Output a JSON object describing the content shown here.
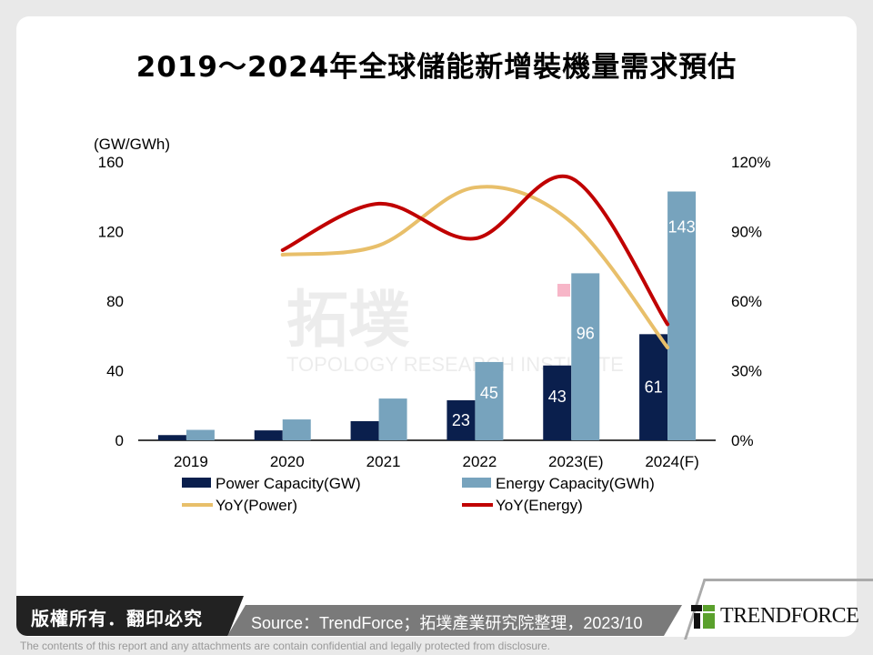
{
  "title": "2019～2024年全球儲能新增裝機量需求預估",
  "chart_data": {
    "type": "bar+line",
    "title": "2019～2024年全球儲能新增裝機量需求預估",
    "ylabel": "(GW/GWh)",
    "categories": [
      "2019",
      "2020",
      "2021",
      "2022",
      "2023(E)",
      "2024(F)"
    ],
    "ylim": [
      0,
      160
    ],
    "yticks": [
      "0",
      "40",
      "80",
      "120",
      "160"
    ],
    "y2lim": [
      0,
      120
    ],
    "y2ticks": [
      "0%",
      "30%",
      "60%",
      "90%",
      "120%"
    ],
    "series": [
      {
        "name": "Power Capacity(GW)",
        "type": "bar",
        "axis": "left",
        "color": "#0a1f4d",
        "values": [
          3,
          5.7,
          11,
          23,
          43,
          61
        ],
        "labels": [
          null,
          null,
          null,
          "23",
          "43",
          "61"
        ]
      },
      {
        "name": "Energy Capacity(GWh)",
        "type": "bar",
        "axis": "left",
        "color": "#77a3bd",
        "values": [
          6,
          12,
          24,
          45,
          96,
          143
        ],
        "labels": [
          null,
          null,
          null,
          "45",
          "96",
          "143"
        ]
      },
      {
        "name": "YoY(Power)",
        "type": "line",
        "axis": "right",
        "color": "#e8bf6a",
        "values": [
          null,
          80,
          84,
          109,
          94,
          40
        ]
      },
      {
        "name": "YoY(Energy)",
        "type": "line",
        "axis": "right",
        "color": "#c00000",
        "values": [
          null,
          82,
          102,
          87,
          113,
          50
        ]
      }
    ],
    "grid": false,
    "legend": "bottom"
  },
  "watermark": "拓墣 TOPOLOGY RESEARCH INSTITUTE",
  "footer": {
    "copyright": "版權所有．翻印必究",
    "source": "Source：TrendForce；拓墣產業研究院整理，2023/10",
    "logo": "TRENDFORCE",
    "disclaimer": "The contents of this report and any attachments are contain confidential and legally protected from disclosure."
  }
}
